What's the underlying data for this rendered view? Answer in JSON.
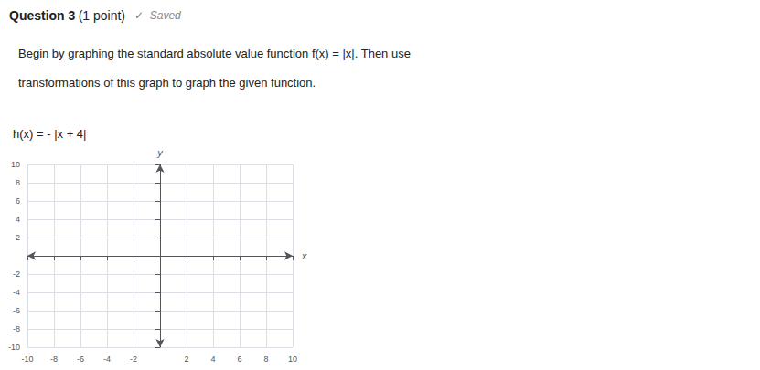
{
  "chart_data": {
    "type": "line",
    "title": "Question 3",
    "subtitle": "(1 point)",
    "annotations": [
      "✓",
      "Saved",
      "Begin by graphing the standard absolute value function f(x) = |x|. Then use",
      "transformations of this graph to graph the given function.",
      "h(x) = - |x + 4|"
    ],
    "xlabel": "x",
    "ylabel": "y",
    "xlim": [
      -10,
      10
    ],
    "ylim": [
      -10,
      10
    ],
    "xticks": [
      -10,
      -8,
      -6,
      -4,
      -2,
      2,
      4,
      6,
      8,
      10
    ],
    "yticks": [
      -10,
      -8,
      -6,
      -4,
      -2,
      2,
      4,
      6,
      8,
      10
    ],
    "grid": true
  }
}
